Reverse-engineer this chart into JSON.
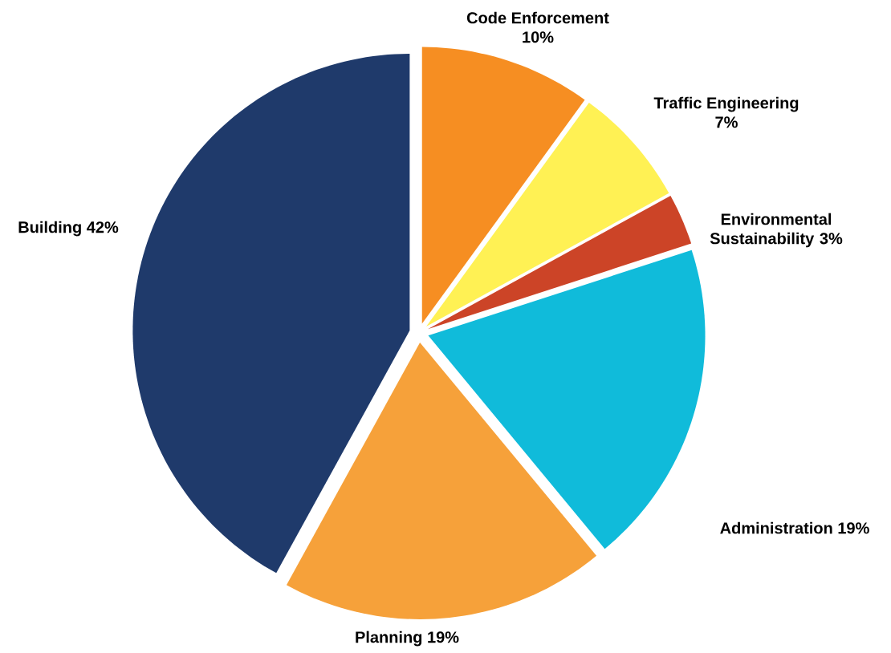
{
  "chart_data": {
    "type": "pie",
    "categories": [
      "Code Enforcement",
      "Traffic Engineering",
      "Environmental Sustainability",
      "Administration",
      "Planning",
      "Building"
    ],
    "values": [
      10,
      7,
      3,
      19,
      19,
      42
    ],
    "value_labels": [
      "10%",
      "7%",
      "3%",
      "19%",
      "19%",
      "42%"
    ],
    "colors": [
      "#f68e22",
      "#fff154",
      "#cc4427",
      "#10bbda",
      "#f6a13a",
      "#1f3a6b"
    ]
  }
}
